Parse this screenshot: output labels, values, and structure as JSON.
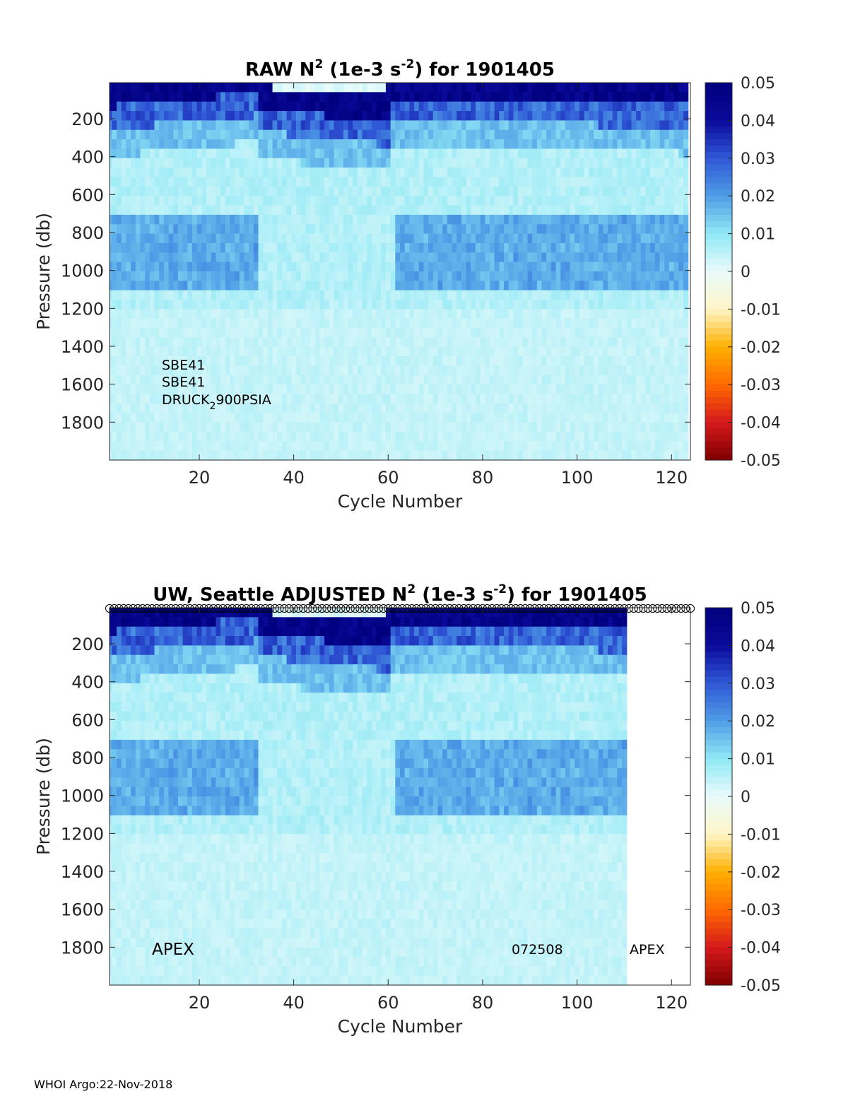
{
  "footer": "WHOI Argo:22-Nov-2018",
  "colors": {
    "colormap": [
      "#7f0000",
      "#d7191c",
      "#ff6a00",
      "#ffb000",
      "#fff6c8",
      "#e8fbfb",
      "#8fe8f5",
      "#4f9de6",
      "#2f57d6",
      "#0a0a9a",
      "#00007f"
    ]
  },
  "chart_data": [
    {
      "type": "heatmap",
      "title_parts": {
        "pre": "RAW N",
        "sup1": "2",
        "mid": " (1e-3 s",
        "sup2": "-2",
        "post": ") for 1901405"
      },
      "xlabel": "Cycle Number",
      "ylabel": "Pressure (db)",
      "xlim": [
        1,
        124
      ],
      "ylim": [
        2000,
        10
      ],
      "xticks": [
        20,
        40,
        60,
        80,
        100,
        120
      ],
      "yticks": [
        200,
        400,
        600,
        800,
        1000,
        1200,
        1400,
        1600,
        1800
      ],
      "colorbar": {
        "range": [
          -0.05,
          0.05
        ],
        "ticks": [
          "0.05",
          "0.04",
          "0.03",
          "0.02",
          "0.01",
          "0",
          "-0.01",
          "-0.02",
          "-0.03",
          "-0.04",
          "-0.05"
        ]
      },
      "data_cycles": [
        1,
        123
      ],
      "annotations": [
        {
          "text": "SBE41"
        },
        {
          "text": "SBE41"
        },
        {
          "text_pre": "DRUCK",
          "sub": "2",
          "text_post": "900PSIA"
        }
      ]
    },
    {
      "type": "heatmap",
      "title_parts": {
        "pre": "UW, Seattle  ADJUSTED N",
        "sup1": "2",
        "mid": " (1e-3 s",
        "sup2": "-2",
        "post": ") for 1901405"
      },
      "xlabel": "Cycle Number",
      "ylabel": "Pressure (db)",
      "xlim": [
        1,
        124
      ],
      "ylim": [
        2000,
        10
      ],
      "xticks": [
        20,
        40,
        60,
        80,
        100,
        120
      ],
      "yticks": [
        200,
        400,
        600,
        800,
        1000,
        1200,
        1400,
        1600,
        1800
      ],
      "colorbar": {
        "range": [
          -0.05,
          0.05
        ],
        "ticks": [
          "0.05",
          "0.04",
          "0.03",
          "0.02",
          "0.01",
          "0",
          "-0.01",
          "-0.02",
          "-0.03",
          "-0.04",
          "-0.05"
        ]
      },
      "data_cycles": [
        1,
        110
      ],
      "top_marker_cycles": [
        1,
        124
      ],
      "annotations": [
        {
          "text": "APEX"
        },
        {
          "text": "072508"
        },
        {
          "text": "APEX"
        }
      ]
    }
  ]
}
